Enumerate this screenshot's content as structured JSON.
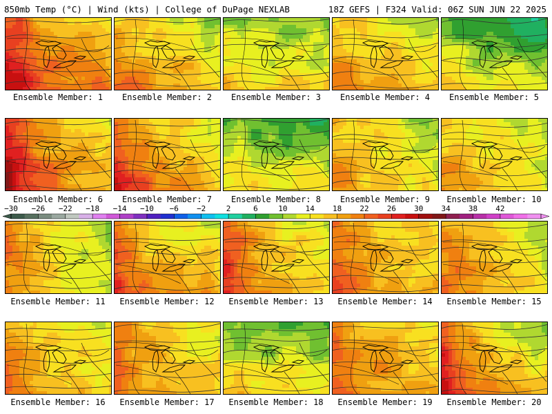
{
  "header": {
    "left": "850mb Temp (°C) | Wind (kts) | College of DuPage NEXLAB",
    "right": "18Z GEFS | F324 Valid: 06Z SUN JUN 22 2025"
  },
  "panels": [
    {
      "label": "Ensemble Member: 1",
      "base": 18,
      "gradient": [
        0.35,
        0.55
      ],
      "warm_west": 8
    },
    {
      "label": "Ensemble Member: 2",
      "base": 14,
      "gradient": [
        0.3,
        0.55
      ],
      "warm_west": 2
    },
    {
      "label": "Ensemble Member: 3",
      "base": 11,
      "gradient": [
        0.1,
        0.6
      ],
      "warm_west": 1
    },
    {
      "label": "Ensemble Member: 4",
      "base": 14,
      "gradient": [
        0.3,
        0.5
      ],
      "warm_west": 2
    },
    {
      "label": "Ensemble Member: 5",
      "base": 8,
      "gradient": [
        0.2,
        0.7
      ],
      "warm_west": 2
    },
    {
      "label": "Ensemble Member: 6",
      "base": 17,
      "gradient": [
        0.5,
        0.4
      ],
      "warm_west": 8
    },
    {
      "label": "Ensemble Member: 7",
      "base": 16,
      "gradient": [
        0.5,
        0.4
      ],
      "warm_west": 5
    },
    {
      "label": "Ensemble Member: 8",
      "base": 9,
      "gradient": [
        0.1,
        0.7
      ],
      "warm_west": 1
    },
    {
      "label": "Ensemble Member: 9",
      "base": 13,
      "gradient": [
        0.4,
        0.3
      ],
      "warm_west": 1
    },
    {
      "label": "Ensemble Member: 10",
      "base": 13,
      "gradient": [
        0.4,
        0.3
      ],
      "warm_west": 1
    },
    {
      "label": "Ensemble Member: 11",
      "base": 13,
      "gradient": [
        0.6,
        0.1
      ],
      "warm_west": 2
    },
    {
      "label": "Ensemble Member: 12",
      "base": 15,
      "gradient": [
        0.2,
        0.6
      ],
      "warm_west": 6
    },
    {
      "label": "Ensemble Member: 13",
      "base": 15,
      "gradient": [
        0.5,
        0.3
      ],
      "warm_west": 6
    },
    {
      "label": "Ensemble Member: 14",
      "base": 16,
      "gradient": [
        0.3,
        0.2
      ],
      "warm_west": 2
    },
    {
      "label": "Ensemble Member: 15",
      "base": 14,
      "gradient": [
        0.6,
        0.2
      ],
      "warm_west": 1
    },
    {
      "label": "Ensemble Member: 16",
      "base": 14,
      "gradient": [
        0.3,
        0.3
      ],
      "warm_west": 2
    },
    {
      "label": "Ensemble Member: 17",
      "base": 15,
      "gradient": [
        0.4,
        0.2
      ],
      "warm_west": 2
    },
    {
      "label": "Ensemble Member: 18",
      "base": 10,
      "gradient": [
        0.1,
        0.6
      ],
      "warm_west": 1
    },
    {
      "label": "Ensemble Member: 19",
      "base": 16,
      "gradient": [
        0.4,
        0.3
      ],
      "warm_west": 2
    },
    {
      "label": "Ensemble Member: 20",
      "base": 15,
      "gradient": [
        0.6,
        0.5
      ],
      "warm_west": 7
    }
  ],
  "colorbar": {
    "labels": [
      "−30",
      "−26",
      "−22",
      "−18",
      "−14",
      "−10",
      "−6",
      "−2",
      "2",
      "6",
      "10",
      "14",
      "18",
      "22",
      "26",
      "30",
      "34",
      "38",
      "42"
    ],
    "min": -30,
    "max": 42,
    "step": 2,
    "colors": [
      "#3c5a4a",
      "#57705f",
      "#7a8c80",
      "#9aa8a0",
      "#c0c8c0",
      "#d8b0e8",
      "#e080f0",
      "#d058d8",
      "#b040c8",
      "#8030c0",
      "#5020c0",
      "#2030d0",
      "#1060e8",
      "#1090f0",
      "#10c0f0",
      "#10e0e0",
      "#20d0a0",
      "#20b060",
      "#30a030",
      "#70c030",
      "#b0d830",
      "#e8f020",
      "#f8e020",
      "#f8c020",
      "#f0a010",
      "#f08010",
      "#f06020",
      "#e84020",
      "#e02020",
      "#c81010",
      "#a01010",
      "#801818",
      "#902050",
      "#a02080",
      "#b830a8",
      "#d040c8",
      "#e058d8",
      "#f070e8",
      "#f090f0"
    ]
  }
}
